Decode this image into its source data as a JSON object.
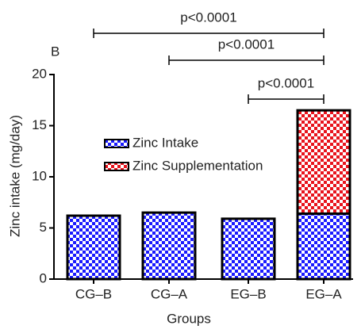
{
  "chart_data": {
    "type": "stacked-bar",
    "panel_label": "B",
    "x_label": "Groups",
    "y_label": "Zinc intake (mg/day)",
    "categories": [
      "CG–B",
      "CG–A",
      "EG–B",
      "EG–A"
    ],
    "series": [
      {
        "name": "Zinc Intake",
        "color": "#1a1aff",
        "values": [
          6.2,
          6.5,
          5.9,
          6.4
        ]
      },
      {
        "name": "Zinc Supplementation",
        "color": "#e8131c",
        "values": [
          null,
          null,
          null,
          10.1
        ]
      }
    ],
    "ylim": [
      0,
      20
    ],
    "yticks": [
      0,
      5,
      10,
      15,
      20
    ],
    "comparisons": [
      {
        "groups": [
          "CG–B",
          "EG–A"
        ],
        "label": "p<0.0001"
      },
      {
        "groups": [
          "CG–A",
          "EG–A"
        ],
        "label": "p<0.0001"
      },
      {
        "groups": [
          "EG–B",
          "EG–A"
        ],
        "label": "p<0.0001"
      }
    ]
  }
}
